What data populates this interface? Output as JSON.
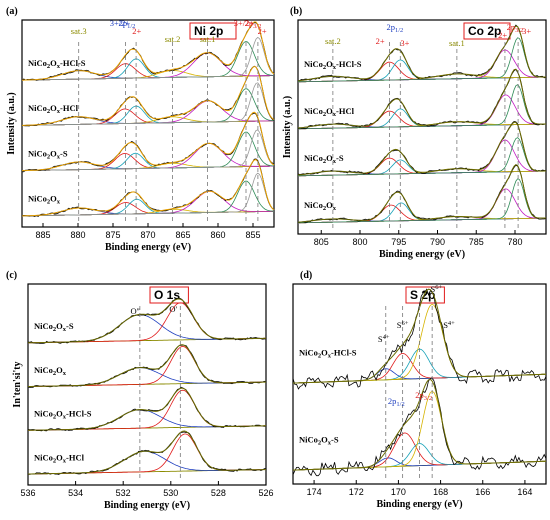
{
  "chart_data": [
    {
      "panel_label": "(a)",
      "type": "line",
      "title": "Ni 2p",
      "xlabel": "Binding energy (eV)",
      "ylabel": "Intensity (a.u.)",
      "xlim": [
        888,
        852
      ],
      "xticks": [
        885,
        880,
        875,
        870,
        865,
        860,
        855
      ],
      "xreverse": true,
      "series": [
        {
          "name": "NiCo2Ox-HCl-S",
          "peaks": [
            [
              879.9,
              0.22,
              2.4
            ],
            [
              873.2,
              0.38,
              1.4
            ],
            [
              871.7,
              0.5,
              1.2
            ],
            [
              866.5,
              0.18,
              2.0
            ],
            [
              861.5,
              0.62,
              2.0
            ],
            [
              856.0,
              0.9,
              1.2
            ],
            [
              854.3,
              1.0,
              0.9
            ]
          ]
        },
        {
          "name": "NiCo2Ox-HCl",
          "peaks": [
            [
              879.9,
              0.2,
              2.4
            ],
            [
              873.3,
              0.38,
              1.4
            ],
            [
              871.7,
              0.45,
              1.2
            ],
            [
              866.5,
              0.15,
              2.0
            ],
            [
              861.4,
              0.55,
              2.0
            ],
            [
              856.0,
              0.85,
              1.2
            ],
            [
              854.4,
              1.0,
              0.9
            ]
          ]
        },
        {
          "name": "NiCo2Ox-S",
          "peaks": [
            [
              879.9,
              0.2,
              2.4
            ],
            [
              873.3,
              0.4,
              1.4
            ],
            [
              871.8,
              0.4,
              1.2
            ],
            [
              866.5,
              0.12,
              2.0
            ],
            [
              861.3,
              0.62,
              2.0
            ],
            [
              856.0,
              0.9,
              1.2
            ],
            [
              854.4,
              0.95,
              0.9
            ]
          ]
        },
        {
          "name": "NiCo2Ox",
          "peaks": [
            [
              879.8,
              0.18,
              2.4
            ],
            [
              873.2,
              0.3,
              1.4
            ],
            [
              871.6,
              0.38,
              1.2
            ],
            [
              866.3,
              0.1,
              2.0
            ],
            [
              861.2,
              0.55,
              2.0
            ],
            [
              856.0,
              0.8,
              1.2
            ],
            [
              854.3,
              1.0,
              0.9
            ]
          ]
        }
      ],
      "annotations": [
        "sat.3",
        "3+/2+",
        "2p1/2",
        "2+",
        "sat.2",
        "sat.1",
        "3+/2+",
        "2p3/2",
        "2+"
      ]
    },
    {
      "panel_label": "(b)",
      "type": "line",
      "title": "Co 2p",
      "xlabel": "Binding energy (eV)",
      "ylabel": "Intensity (a.u.)",
      "xlim": [
        808,
        776
      ],
      "xticks": [
        805,
        800,
        795,
        790,
        785,
        780
      ],
      "xreverse": true,
      "series": [
        {
          "name": "NiCo2Ox-HCl-S",
          "peaks": [
            [
              803.5,
              0.12,
              2.5
            ],
            [
              796.2,
              0.45,
              1.2
            ],
            [
              794.8,
              0.5,
              1.0
            ],
            [
              787.5,
              0.12,
              2.5
            ],
            [
              781.3,
              0.7,
              1.2
            ],
            [
              779.6,
              1.0,
              0.8
            ]
          ]
        },
        {
          "name": "NiCo2Ox-HCl",
          "peaks": [
            [
              803.5,
              0.1,
              2.5
            ],
            [
              796.2,
              0.4,
              1.2
            ],
            [
              794.8,
              0.45,
              1.0
            ],
            [
              787.5,
              0.1,
              2.5
            ],
            [
              781.2,
              0.75,
              1.2
            ],
            [
              779.7,
              1.0,
              0.8
            ]
          ]
        },
        {
          "name": "NiCo2Ox-S",
          "peaks": [
            [
              803.5,
              0.1,
              2.5
            ],
            [
              796.2,
              0.4,
              1.2
            ],
            [
              794.8,
              0.35,
              1.0
            ],
            [
              787.5,
              0.1,
              2.5
            ],
            [
              781.3,
              0.8,
              1.2
            ],
            [
              779.7,
              0.85,
              0.8
            ]
          ]
        },
        {
          "name": "NiCo2Ox",
          "peaks": [
            [
              803.5,
              0.08,
              2.5
            ],
            [
              796.0,
              0.4,
              1.2
            ],
            [
              794.7,
              0.45,
              1.0
            ],
            [
              787.5,
              0.08,
              2.5
            ],
            [
              781.2,
              0.75,
              1.2
            ],
            [
              779.6,
              1.0,
              0.8
            ]
          ]
        }
      ],
      "annotations": [
        "sat.2",
        "2+",
        "2p1/2",
        "3+",
        "sat.1",
        "2+",
        "2p3/2",
        "3+"
      ]
    },
    {
      "panel_label": "(c)",
      "type": "line",
      "title": "O 1s",
      "xlabel": "Binding energy (eV)",
      "ylabel": "In'ten'si'ty",
      "xlim": [
        536,
        526
      ],
      "xticks": [
        536,
        534,
        532,
        530,
        528,
        526
      ],
      "xreverse": true,
      "series": [
        {
          "name": "NiCo2Ox-S",
          "peaks": [
            [
              531.3,
              0.7,
              0.85
            ],
            [
              529.6,
              1.0,
              0.55
            ]
          ]
        },
        {
          "name": "NiCo2Ox",
          "peaks": [
            [
              531.3,
              0.45,
              0.85
            ],
            [
              529.5,
              1.0,
              0.5
            ]
          ]
        },
        {
          "name": "NiCo2Ox-HCl-S",
          "peaks": [
            [
              531.3,
              0.5,
              0.85
            ],
            [
              529.5,
              1.0,
              0.5
            ]
          ]
        },
        {
          "name": "NiCo2Ox-HCl",
          "peaks": [
            [
              531.1,
              0.55,
              0.85
            ],
            [
              529.4,
              1.0,
              0.5
            ]
          ]
        }
      ],
      "annotations": [
        "O''",
        "O'"
      ]
    },
    {
      "panel_label": "(d)",
      "type": "line",
      "title": "S 2p",
      "xlabel": "Binding energy (eV)",
      "ylabel": "",
      "xlim": [
        175,
        163
      ],
      "xticks": [
        174,
        172,
        170,
        168,
        166,
        164
      ],
      "xreverse": true,
      "series": [
        {
          "name": "NiCo2Ox-HCl-S",
          "peaks": [
            [
              170.6,
              0.15,
              0.4
            ],
            [
              169.8,
              0.35,
              0.45
            ],
            [
              169.0,
              0.4,
              0.45
            ],
            [
              168.4,
              1.0,
              0.5
            ]
          ]
        },
        {
          "name": "NiCo2Ox-S",
          "peaks": [
            [
              170.5,
              0.12,
              0.4
            ],
            [
              169.7,
              0.45,
              0.5
            ],
            [
              169.0,
              0.3,
              0.45
            ],
            [
              168.4,
              1.0,
              0.45
            ]
          ]
        }
      ],
      "annotations": [
        "S4+",
        "S6+",
        "S6+",
        "S4+",
        "2p1/2",
        "2p3/2"
      ]
    }
  ]
}
